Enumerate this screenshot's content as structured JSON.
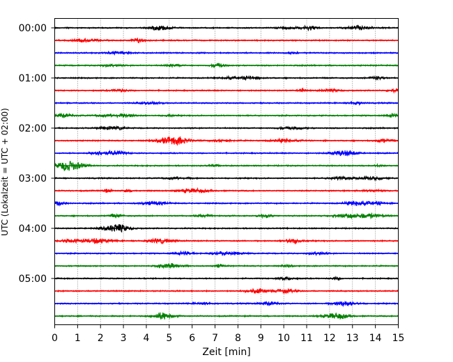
{
  "chart_data": {
    "type": "line",
    "title": "",
    "xlabel": "Zeit  [min]",
    "ylabel": "UTC (Lokalzeit = UTC + 02:00)",
    "xlim": [
      0,
      15
    ],
    "x_ticks": [
      "0",
      "1",
      "2",
      "3",
      "4",
      "5",
      "6",
      "7",
      "8",
      "9",
      "10",
      "11",
      "12",
      "13",
      "14",
      "15"
    ],
    "y_tick_labels": [
      "00:00",
      "01:00",
      "02:00",
      "03:00",
      "04:00",
      "05:00"
    ],
    "grid": "vertical dotted",
    "legend": "none",
    "trace_minutes": 15,
    "trace_count": 24,
    "trace_colors": [
      "#000000",
      "#ff0000",
      "#0000ff",
      "#008000"
    ],
    "series": [
      {
        "start": "00:00",
        "color": "#000000"
      },
      {
        "start": "00:15",
        "color": "#ff0000"
      },
      {
        "start": "00:30",
        "color": "#0000ff"
      },
      {
        "start": "00:45",
        "color": "#008000"
      },
      {
        "start": "01:00",
        "color": "#000000"
      },
      {
        "start": "01:15",
        "color": "#ff0000"
      },
      {
        "start": "01:30",
        "color": "#0000ff"
      },
      {
        "start": "01:45",
        "color": "#008000"
      },
      {
        "start": "02:00",
        "color": "#000000"
      },
      {
        "start": "02:15",
        "color": "#ff0000"
      },
      {
        "start": "02:30",
        "color": "#0000ff"
      },
      {
        "start": "02:45",
        "color": "#008000"
      },
      {
        "start": "03:00",
        "color": "#000000"
      },
      {
        "start": "03:15",
        "color": "#ff0000"
      },
      {
        "start": "03:30",
        "color": "#0000ff"
      },
      {
        "start": "03:45",
        "color": "#008000"
      },
      {
        "start": "04:00",
        "color": "#000000"
      },
      {
        "start": "04:15",
        "color": "#ff0000"
      },
      {
        "start": "04:30",
        "color": "#0000ff"
      },
      {
        "start": "04:45",
        "color": "#008000"
      },
      {
        "start": "05:00",
        "color": "#000000"
      },
      {
        "start": "05:15",
        "color": "#ff0000"
      },
      {
        "start": "05:30",
        "color": "#0000ff"
      },
      {
        "start": "05:45",
        "color": "#008000"
      }
    ]
  }
}
